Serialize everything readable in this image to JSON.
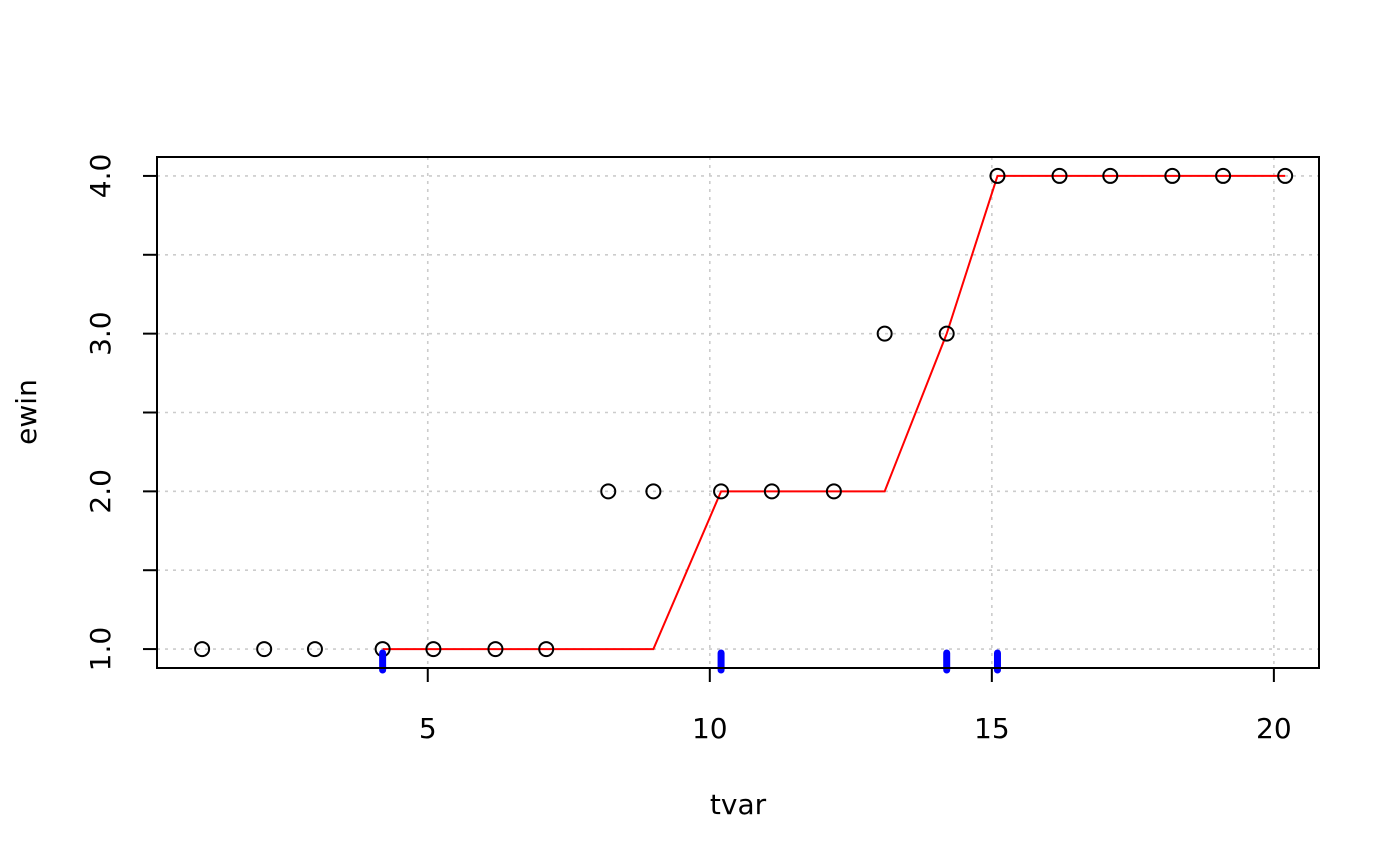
{
  "chart_data": {
    "type": "scatter",
    "xlabel": "tvar",
    "ylabel": "ewin",
    "xlim": [
      0.2,
      20.8
    ],
    "ylim": [
      0.88,
      4.12
    ],
    "x_ticks": [
      5,
      10,
      15,
      20
    ],
    "x_tick_labels": [
      "5",
      "10",
      "15",
      "20"
    ],
    "y_ticks": [
      1.0,
      1.5,
      2.0,
      2.5,
      3.0,
      3.5,
      4.0
    ],
    "y_tick_labels": [
      "1.0",
      "",
      "2.0",
      "",
      "3.0",
      "",
      "4.0"
    ],
    "grid": true,
    "points": {
      "x": [
        1.0,
        2.1,
        3.0,
        4.2,
        5.1,
        6.2,
        7.1,
        8.2,
        9.0,
        10.2,
        11.1,
        12.2,
        13.1,
        14.2,
        15.1,
        16.2,
        17.1,
        18.2,
        19.1,
        20.2
      ],
      "y": [
        1,
        1,
        1,
        1,
        1,
        1,
        1,
        2,
        2,
        2,
        2,
        2,
        3,
        3,
        4,
        4,
        4,
        4,
        4,
        4
      ],
      "marker": "open-circle",
      "color": "#000000"
    },
    "fitted_line": {
      "x": [
        4.2,
        9.0,
        10.2,
        13.1,
        14.2,
        15.1,
        20.2
      ],
      "y": [
        1,
        1,
        2,
        2,
        3,
        4,
        4
      ],
      "color": "#ff0000"
    },
    "change_points": {
      "x": [
        4.2,
        10.2,
        14.2,
        15.1
      ],
      "color": "#0000ff"
    }
  }
}
